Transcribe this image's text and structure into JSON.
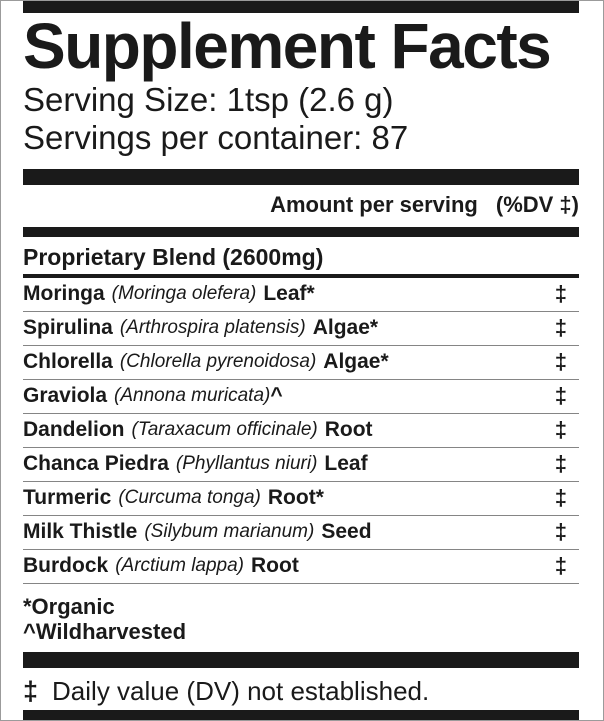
{
  "label": {
    "title": "Supplement Facts",
    "serving_size": "Serving Size: 1tsp (2.6 g)",
    "servings_per_container": "Servings per container: 87",
    "header": {
      "amount_per_serving": "Amount per serving",
      "dv": "(%DV ‡)"
    },
    "blend_heading": "Proprietary Blend (2600mg)",
    "ingredients": [
      {
        "name": "Moringa",
        "latin": "(Moringa olefera)",
        "part": "Leaf*",
        "dv": "‡"
      },
      {
        "name": "Spirulina",
        "latin": "(Arthrospira platensis)",
        "part": "Algae*",
        "dv": "‡"
      },
      {
        "name": "Chlorella",
        "latin": "(Chlorella pyrenoidosa)",
        "part": "Algae*",
        "dv": "‡"
      },
      {
        "name": "Graviola",
        "latin": "(Annona muricata)",
        "part": "^",
        "dv": "‡"
      },
      {
        "name": "Dandelion",
        "latin": "(Taraxacum officinale)",
        "part": "Root",
        "dv": "‡"
      },
      {
        "name": "Chanca Piedra",
        "latin": "(Phyllantus niuri)",
        "part": "Leaf",
        "dv": "‡"
      },
      {
        "name": "Turmeric",
        "latin": "(Curcuma tonga)",
        "part": "Root*",
        "dv": "‡"
      },
      {
        "name": "Milk Thistle",
        "latin": "(Silybum marianum)",
        "part": "Seed",
        "dv": "‡"
      },
      {
        "name": "Burdock",
        "latin": "(Arctium lappa)",
        "part": "Root",
        "dv": "‡"
      }
    ],
    "footnotes": {
      "organic": "*Organic",
      "wildharvested": "^Wildharvested"
    },
    "dv_note": {
      "symbol": "‡",
      "text": "Daily value (DV) not established."
    },
    "colors": {
      "ink": "#1a1a1a",
      "outer_border": "#9b9b9b",
      "row_separator": "#858585"
    }
  }
}
